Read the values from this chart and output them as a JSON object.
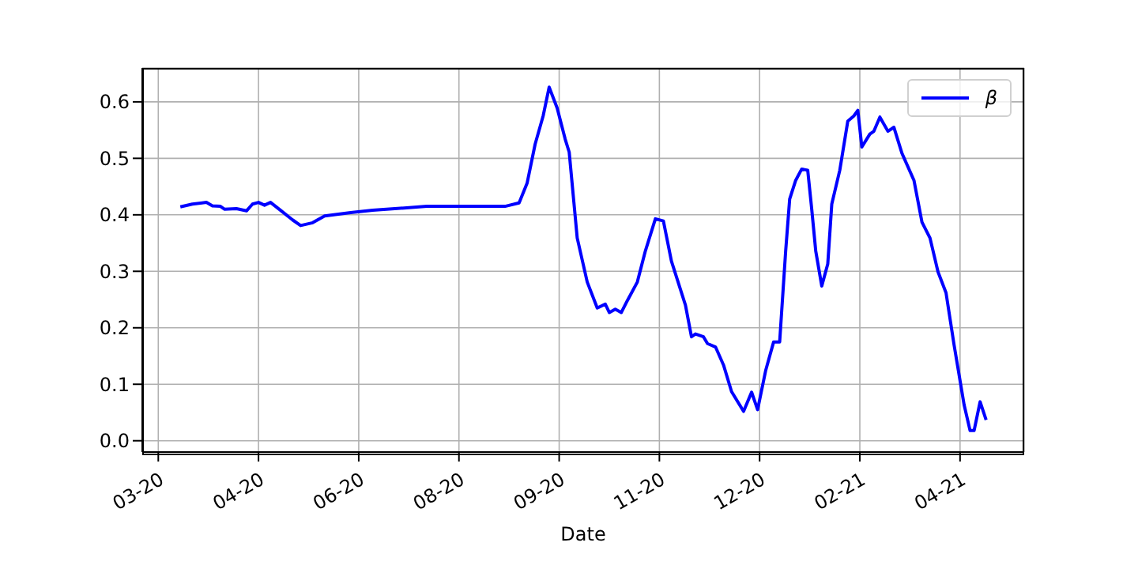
{
  "chart_data": {
    "type": "line",
    "xlabel": "Date",
    "x": [
      "2020-03-16",
      "2020-03-22",
      "2020-03-29",
      "2020-04-01",
      "2020-04-05",
      "2020-04-07",
      "2020-04-13",
      "2020-04-18",
      "2020-04-21",
      "2020-04-24",
      "2020-04-27",
      "2020-04-30",
      "2020-05-05",
      "2020-05-11",
      "2020-05-15",
      "2020-05-21",
      "2020-05-27",
      "2020-06-09",
      "2020-06-20",
      "2020-07-17",
      "2020-08-02",
      "2020-08-25",
      "2020-09-01",
      "2020-09-05",
      "2020-09-09",
      "2020-09-13",
      "2020-09-16",
      "2020-09-20",
      "2020-09-24",
      "2020-09-26",
      "2020-09-30",
      "2020-10-05",
      "2020-10-10",
      "2020-10-14",
      "2020-10-16",
      "2020-10-19",
      "2020-10-22",
      "2020-10-25",
      "2020-10-30",
      "2020-11-03",
      "2020-11-08",
      "2020-11-12",
      "2020-11-16",
      "2020-11-23",
      "2020-11-26",
      "2020-11-28",
      "2020-12-02",
      "2020-12-04",
      "2020-12-08",
      "2020-12-12",
      "2020-12-16",
      "2020-12-22",
      "2020-12-26",
      "2020-12-29",
      "2021-01-02",
      "2021-01-06",
      "2021-01-09",
      "2021-01-12",
      "2021-01-14",
      "2021-01-17",
      "2021-01-20",
      "2021-01-23",
      "2021-01-25",
      "2021-01-27",
      "2021-01-30",
      "2021-02-02",
      "2021-02-04",
      "2021-02-08",
      "2021-02-12",
      "2021-02-15",
      "2021-02-17",
      "2021-02-19",
      "2021-02-23",
      "2021-02-25",
      "2021-02-28",
      "2021-03-04",
      "2021-03-07",
      "2021-03-11",
      "2021-03-17",
      "2021-03-21",
      "2021-03-25",
      "2021-03-29",
      "2021-04-02",
      "2021-04-06",
      "2021-04-11",
      "2021-04-14",
      "2021-04-16",
      "2021-04-19",
      "2021-04-22"
    ],
    "series": [
      {
        "name": "β",
        "color": "#0000ff",
        "values": [
          0.414,
          0.419,
          0.422,
          0.416,
          0.415,
          0.41,
          0.411,
          0.407,
          0.419,
          0.422,
          0.417,
          0.422,
          0.408,
          0.391,
          0.381,
          0.386,
          0.398,
          0.404,
          0.408,
          0.415,
          0.415,
          0.415,
          0.421,
          0.456,
          0.525,
          0.575,
          0.626,
          0.589,
          0.534,
          0.511,
          0.359,
          0.281,
          0.235,
          0.242,
          0.227,
          0.233,
          0.227,
          0.248,
          0.281,
          0.336,
          0.393,
          0.389,
          0.318,
          0.24,
          0.184,
          0.189,
          0.184,
          0.172,
          0.166,
          0.134,
          0.087,
          0.052,
          0.086,
          0.055,
          0.124,
          0.175,
          0.175,
          0.336,
          0.428,
          0.461,
          0.481,
          0.479,
          0.41,
          0.336,
          0.274,
          0.313,
          0.419,
          0.479,
          0.566,
          0.575,
          0.585,
          0.52,
          0.543,
          0.548,
          0.573,
          0.548,
          0.555,
          0.509,
          0.461,
          0.387,
          0.359,
          0.299,
          0.262,
          0.17,
          0.064,
          0.018,
          0.018,
          0.069,
          0.037
        ]
      }
    ],
    "xlim": [
      "2020-02-26",
      "2021-05-11"
    ],
    "xticks": [
      {
        "value": "2020-03-05",
        "label": "03-20"
      },
      {
        "value": "2020-04-24",
        "label": "04-20"
      },
      {
        "value": "2020-06-13",
        "label": "06-20"
      },
      {
        "value": "2020-08-02",
        "label": "08-20"
      },
      {
        "value": "2020-09-21",
        "label": "09-20"
      },
      {
        "value": "2020-11-10",
        "label": "11-20"
      },
      {
        "value": "2020-12-30",
        "label": "12-20"
      },
      {
        "value": "2021-02-18",
        "label": "02-21"
      },
      {
        "value": "2021-04-09",
        "label": "04-21"
      }
    ],
    "ylim": [
      -0.02,
      0.66
    ],
    "yticks": [
      {
        "value": 0,
        "label": "0.0"
      },
      {
        "value": 0.1,
        "label": "0.1"
      },
      {
        "value": 0.2,
        "label": "0.2"
      },
      {
        "value": 0.3,
        "label": "0.3"
      },
      {
        "value": 0.4,
        "label": "0.4"
      },
      {
        "value": 0.5,
        "label": "0.5"
      },
      {
        "value": 0.6,
        "label": "0.6"
      }
    ],
    "grid": true,
    "legend": "top right",
    "marker": "none",
    "line_style": "solid"
  }
}
